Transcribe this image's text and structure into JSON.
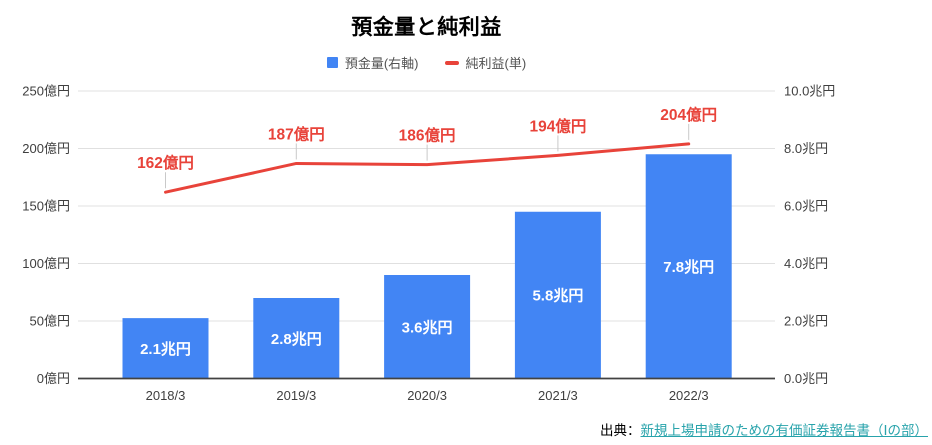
{
  "title": "預金量と純利益",
  "legend": {
    "items": [
      {
        "label": "預金量(右軸)",
        "color": "#4285f4",
        "shape": "square"
      },
      {
        "label": "純利益(単)",
        "color": "#e8433a",
        "shape": "dash"
      }
    ]
  },
  "source": {
    "prefix": "出典：",
    "link_text": "新規上場申請のための有価証券報告書（Ⅰの部）",
    "link_color": "#28a3ab"
  },
  "chart_data": {
    "type": "combo",
    "title": "預金量と純利益",
    "categories": [
      "2018/3",
      "2019/3",
      "2020/3",
      "2021/3",
      "2022/3"
    ],
    "series": [
      {
        "name": "預金量(右軸)",
        "type": "bar",
        "axis": "right",
        "color": "#4285f4",
        "unit": "兆円",
        "values": [
          2.1,
          2.8,
          3.6,
          5.8,
          7.8
        ],
        "labels": [
          "2.1兆円",
          "2.8兆円",
          "3.6兆円",
          "5.8兆円",
          "7.8兆円"
        ],
        "label_color": "#ffffff"
      },
      {
        "name": "純利益(単)",
        "type": "line",
        "axis": "left",
        "color": "#e8433a",
        "unit": "億円",
        "values": [
          162,
          187,
          186,
          194,
          204
        ],
        "labels": [
          "162億円",
          "187億円",
          "186億円",
          "194億円",
          "204億円"
        ],
        "label_color": "#e8433a"
      }
    ],
    "left_axis": {
      "unit": "億円",
      "min": 0,
      "max": 250,
      "ticks": [
        "0億円",
        "50億円",
        "100億円",
        "150億円",
        "200億円",
        "250億円"
      ]
    },
    "right_axis": {
      "unit": "兆円",
      "min": 0,
      "max": 10,
      "ticks": [
        "0.0兆円",
        "2.0兆円",
        "4.0兆円",
        "6.0兆円",
        "8.0兆円",
        "10.0兆円"
      ]
    },
    "grid": true,
    "legend_position": "top"
  }
}
